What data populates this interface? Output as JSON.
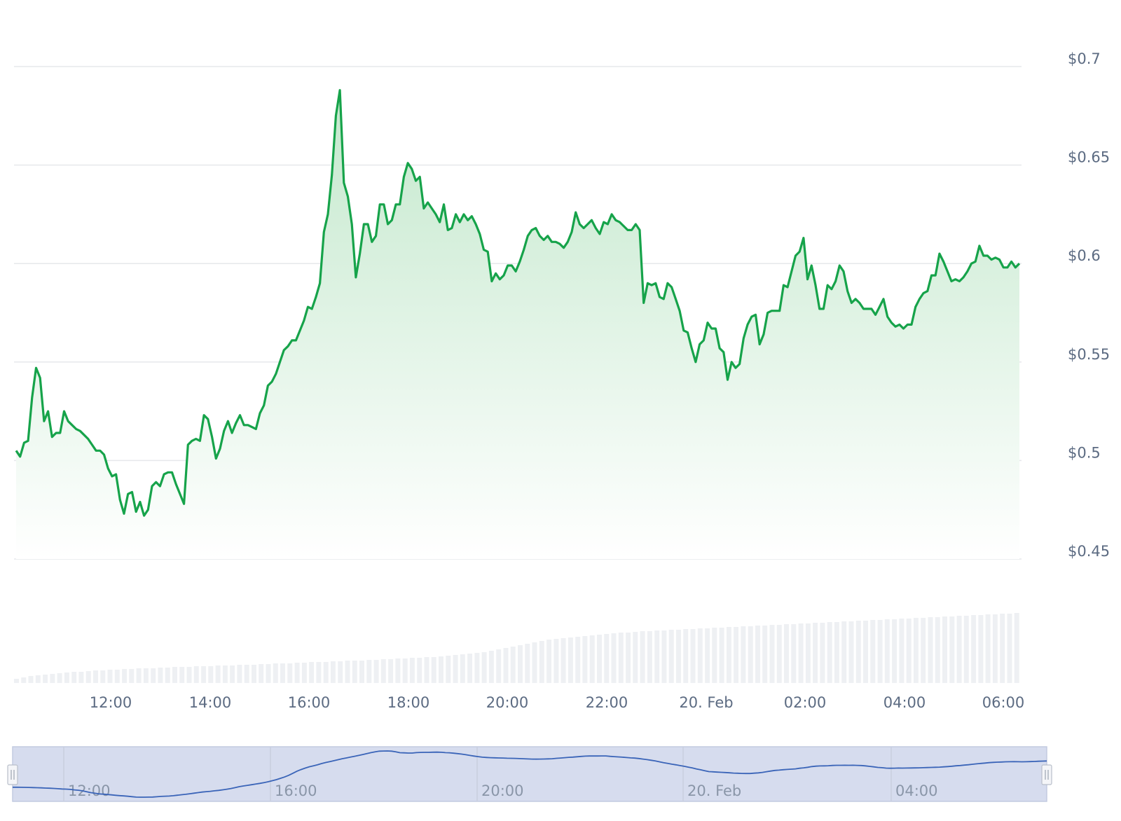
{
  "chart_data": {
    "type": "line",
    "series": [
      {
        "values": [
          0.505,
          0.502,
          0.509,
          0.51,
          0.532,
          0.547,
          0.542,
          0.52,
          0.525,
          0.512,
          0.514,
          0.514,
          0.525,
          0.52,
          0.518,
          0.516,
          0.515,
          0.513,
          0.511,
          0.508,
          0.505,
          0.505,
          0.503,
          0.496,
          0.492,
          0.493,
          0.48,
          0.473,
          0.483,
          0.484,
          0.474,
          0.479,
          0.472,
          0.475,
          0.487,
          0.489,
          0.487,
          0.493,
          0.494,
          0.494,
          0.488,
          0.483,
          0.478,
          0.508,
          0.51,
          0.511,
          0.51,
          0.523,
          0.521,
          0.512,
          0.501,
          0.506,
          0.515,
          0.52,
          0.514,
          0.519,
          0.523,
          0.518,
          0.518,
          0.517,
          0.516,
          0.524,
          0.528,
          0.538,
          0.54,
          0.544,
          0.55,
          0.556,
          0.558,
          0.561,
          0.561,
          0.566,
          0.571,
          0.578,
          0.577,
          0.583,
          0.59,
          0.616,
          0.625,
          0.645,
          0.675,
          0.688,
          0.641,
          0.634,
          0.62,
          0.593,
          0.605,
          0.62,
          0.62,
          0.611,
          0.614,
          0.63,
          0.63,
          0.62,
          0.622,
          0.63,
          0.63,
          0.644,
          0.651,
          0.648,
          0.642,
          0.644,
          0.628,
          0.631,
          0.628,
          0.625,
          0.621,
          0.63,
          0.617,
          0.618,
          0.625,
          0.621,
          0.625,
          0.622,
          0.624,
          0.62,
          0.615,
          0.607,
          0.606,
          0.591,
          0.595,
          0.592,
          0.594,
          0.599,
          0.599,
          0.596,
          0.601,
          0.607,
          0.614,
          0.617,
          0.618,
          0.614,
          0.612,
          0.614,
          0.611,
          0.611,
          0.61,
          0.608,
          0.611,
          0.616,
          0.626,
          0.62,
          0.618,
          0.62,
          0.622,
          0.618,
          0.615,
          0.621,
          0.62,
          0.625,
          0.622,
          0.621,
          0.619,
          0.617,
          0.617,
          0.62,
          0.617,
          0.58,
          0.59,
          0.589,
          0.59,
          0.583,
          0.582,
          0.59,
          0.588,
          0.582,
          0.576,
          0.566,
          0.565,
          0.557,
          0.55,
          0.559,
          0.561,
          0.57,
          0.567,
          0.567,
          0.557,
          0.555,
          0.541,
          0.55,
          0.547,
          0.549,
          0.562,
          0.569,
          0.573,
          0.574,
          0.559,
          0.564,
          0.575,
          0.576,
          0.576,
          0.576,
          0.589,
          0.588,
          0.596,
          0.604,
          0.606,
          0.613,
          0.592,
          0.599,
          0.589,
          0.577,
          0.577,
          0.589,
          0.587,
          0.591,
          0.599,
          0.596,
          0.586,
          0.58,
          0.582,
          0.58,
          0.577,
          0.577,
          0.577,
          0.574,
          0.578,
          0.582,
          0.573,
          0.57,
          0.568,
          0.569,
          0.567,
          0.569,
          0.569,
          0.578,
          0.582,
          0.585,
          0.586,
          0.594,
          0.594,
          0.605,
          0.601,
          0.596,
          0.591,
          0.592,
          0.591,
          0.593,
          0.596,
          0.6,
          0.601,
          0.609,
          0.604,
          0.604,
          0.602,
          0.603,
          0.602,
          0.598,
          0.598,
          0.601,
          0.598,
          0.6
        ]
      }
    ],
    "volume_relative": [
      0.06,
      0.08,
      0.1,
      0.11,
      0.12,
      0.13,
      0.14,
      0.15,
      0.16,
      0.16,
      0.17,
      0.18,
      0.18,
      0.19,
      0.19,
      0.2,
      0.2,
      0.21,
      0.21,
      0.21,
      0.22,
      0.22,
      0.23,
      0.23,
      0.23,
      0.24,
      0.24,
      0.24,
      0.25,
      0.25,
      0.25,
      0.26,
      0.26,
      0.26,
      0.27,
      0.27,
      0.28,
      0.28,
      0.28,
      0.29,
      0.29,
      0.3,
      0.3,
      0.3,
      0.31,
      0.31,
      0.32,
      0.32,
      0.32,
      0.33,
      0.33,
      0.34,
      0.34,
      0.35,
      0.35,
      0.36,
      0.36,
      0.37,
      0.37,
      0.38,
      0.39,
      0.4,
      0.41,
      0.42,
      0.43,
      0.44,
      0.46,
      0.48,
      0.5,
      0.52,
      0.54,
      0.56,
      0.58,
      0.6,
      0.62,
      0.63,
      0.64,
      0.65,
      0.66,
      0.67,
      0.68,
      0.69,
      0.7,
      0.71,
      0.72,
      0.72,
      0.73,
      0.74,
      0.74,
      0.75,
      0.75,
      0.76,
      0.76,
      0.77,
      0.77,
      0.78,
      0.78,
      0.79,
      0.79,
      0.8,
      0.8,
      0.81,
      0.81,
      0.82,
      0.82,
      0.83,
      0.83,
      0.84,
      0.84,
      0.85,
      0.85,
      0.86,
      0.86,
      0.87,
      0.87,
      0.88,
      0.88,
      0.89,
      0.89,
      0.9,
      0.9,
      0.91,
      0.91,
      0.92,
      0.92,
      0.93,
      0.93,
      0.94,
      0.94,
      0.95,
      0.95,
      0.96,
      0.96,
      0.97,
      0.97,
      0.98,
      0.98,
      0.99,
      0.99,
      1.0
    ],
    "y_axis": {
      "ticks": [
        "$0.45",
        "$0.5",
        "$0.55",
        "$0.6",
        "$0.65",
        "$0.7"
      ],
      "tick_values": [
        0.45,
        0.5,
        0.55,
        0.6,
        0.65,
        0.7
      ],
      "ylim": [
        0.45,
        0.7
      ]
    },
    "x_axis": {
      "ticks": [
        "12:00",
        "14:00",
        "16:00",
        "18:00",
        "20:00",
        "22:00",
        "20. Feb",
        "02:00",
        "04:00",
        "06:00"
      ],
      "start": "10:05",
      "end": "06:50"
    },
    "navigator": {
      "ticks": [
        "12:00",
        "16:00",
        "20:00",
        "20. Feb",
        "04:00"
      ]
    },
    "grid": true,
    "legend": "none",
    "colors": {
      "line": "#16a34a",
      "area_top": "#c3e8cc",
      "volume_bar": "#eef0f3",
      "navigator_fill": "#d6dcee",
      "navigator_line": "#3a64b8",
      "grid": "#e6e8eb",
      "tick_text": "#5c6b82"
    }
  }
}
